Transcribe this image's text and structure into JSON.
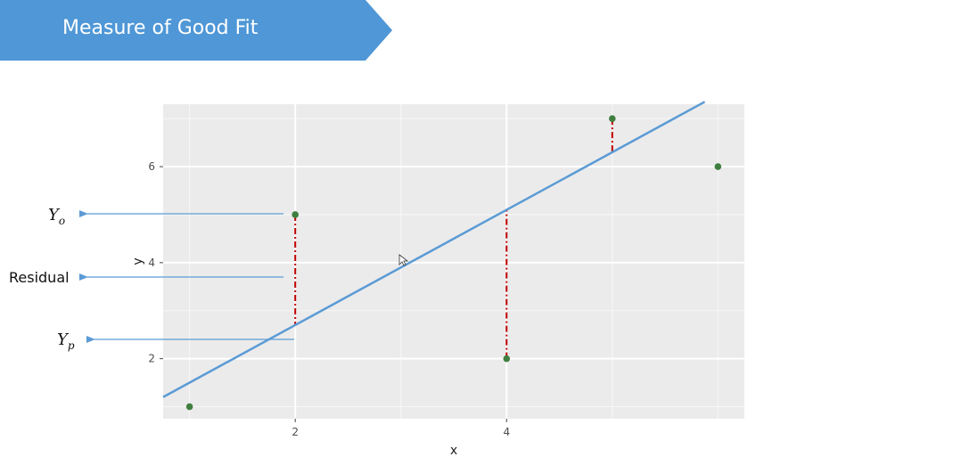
{
  "slide": {
    "title": "Measure of Good Fit",
    "title_color": "#ffffff",
    "banner_color": "#4f97d6"
  },
  "annotations": {
    "yo": {
      "main": "Y",
      "sub": "o"
    },
    "residual": "Residual",
    "yp": {
      "main": "Y",
      "sub": "p"
    },
    "arrow_color": "#5b9bd5"
  },
  "chart_data": {
    "type": "scatter",
    "xlabel": "x",
    "ylabel": "y",
    "xlim": [
      0.75,
      6.25
    ],
    "ylim": [
      0.75,
      7.3
    ],
    "x_ticks": [
      2,
      4
    ],
    "y_ticks": [
      2,
      4,
      6
    ],
    "grid": true,
    "panel_color": "#ebebeb",
    "point_color": "#3f7f3f",
    "line_color": "#5b9bd5",
    "residual_color": "#c00000",
    "points": [
      {
        "x": 1,
        "y": 1
      },
      {
        "x": 2,
        "y": 5
      },
      {
        "x": 4,
        "y": 2
      },
      {
        "x": 5,
        "y": 7
      },
      {
        "x": 6,
        "y": 6
      }
    ],
    "fit_line": {
      "intercept": 0.3,
      "slope": 1.2
    },
    "residuals_shown": [
      {
        "x": 2,
        "y_observed": 5,
        "y_predicted": 2.7
      },
      {
        "x": 4,
        "y_observed": 2,
        "y_predicted": 5.1
      },
      {
        "x": 5,
        "y_observed": 7,
        "y_predicted": 6.3
      }
    ]
  }
}
